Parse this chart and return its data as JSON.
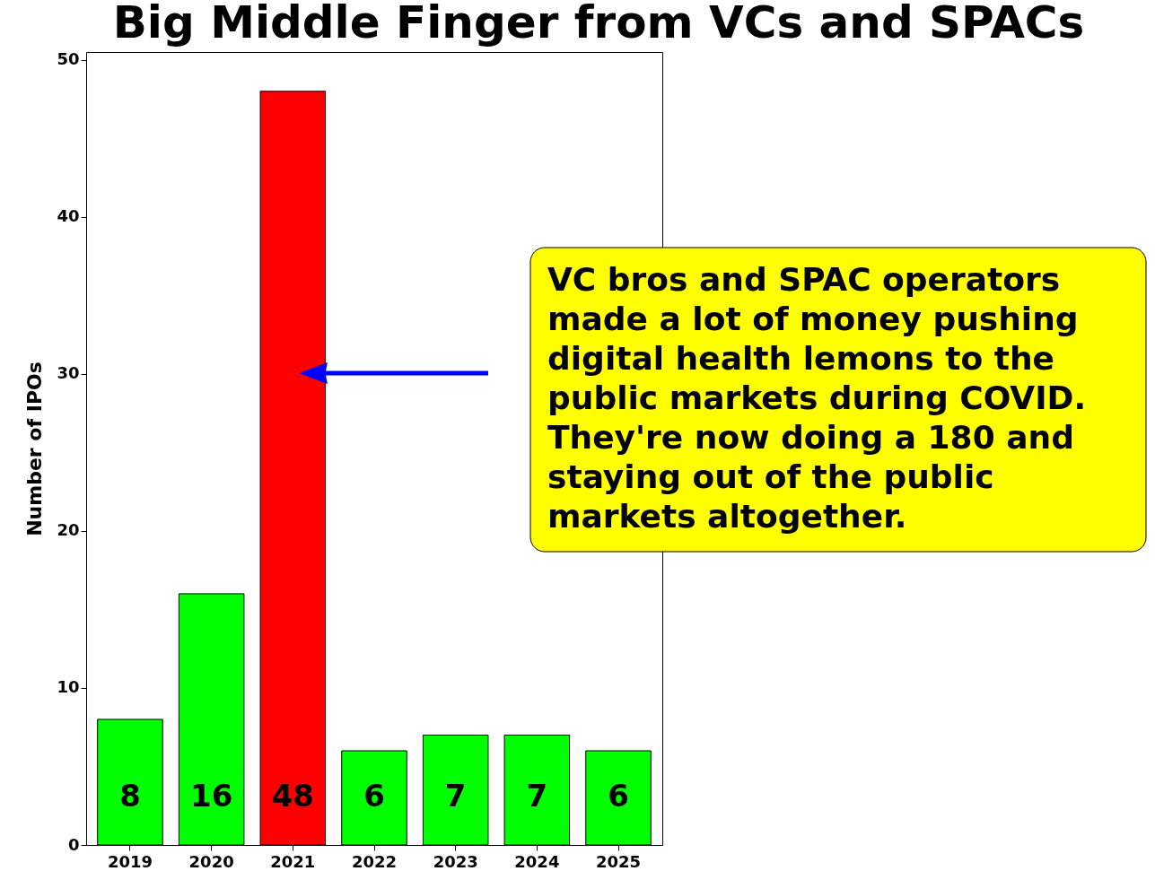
{
  "chart_data": {
    "type": "bar",
    "title": "Big Middle Finger from VCs and SPACs",
    "ylabel": "Number of IPOs",
    "categories": [
      "2019",
      "2020",
      "2021",
      "2022",
      "2023",
      "2024",
      "2025"
    ],
    "values": [
      8,
      16,
      48,
      6,
      7,
      7,
      6
    ],
    "colors": [
      "#00ff00",
      "#00ff00",
      "#ff0000",
      "#00ff00",
      "#00ff00",
      "#00ff00",
      "#00ff00"
    ],
    "ylim": [
      0,
      50.5
    ],
    "yticks": [
      0,
      10,
      20,
      30,
      40,
      50
    ],
    "grid": false,
    "data_labels": true,
    "annotations": [
      "VC bros and SPAC operators made a lot of money pushing digital health lemons to the public markets during COVID. They're now doing a 180 and staying out of the public markets altogether."
    ]
  }
}
